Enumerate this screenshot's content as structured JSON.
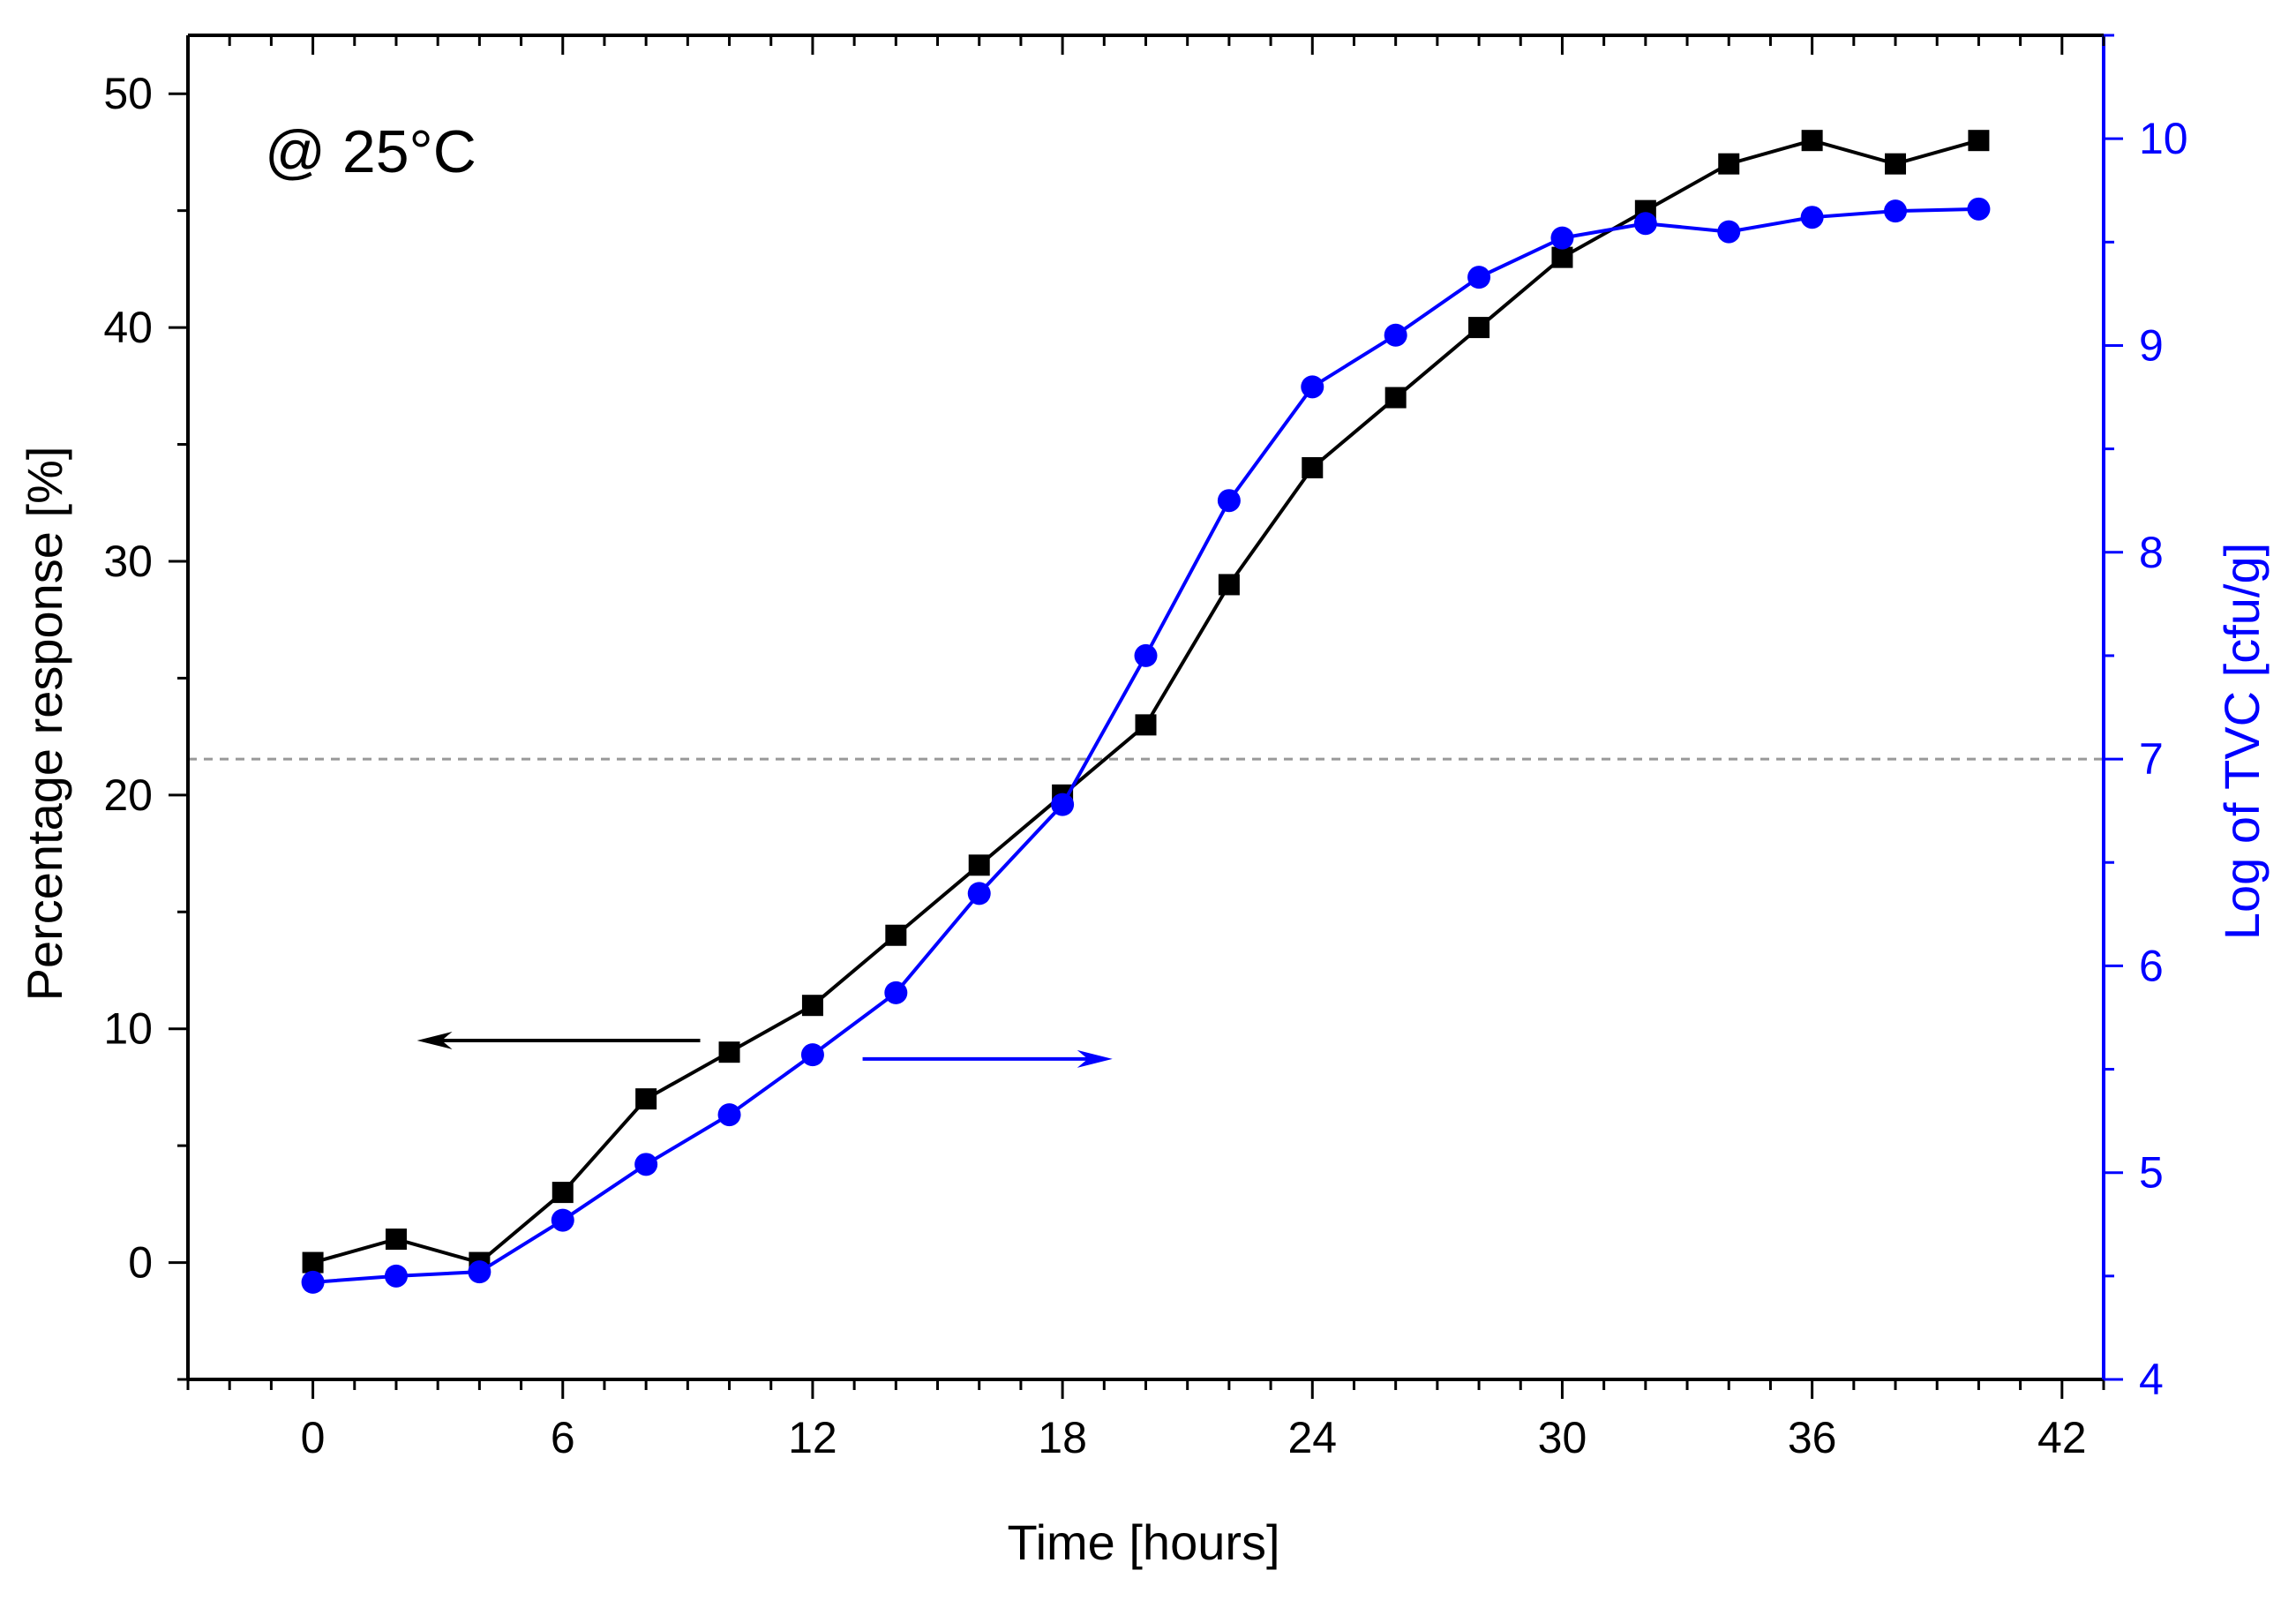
{
  "chart_data": {
    "type": "line",
    "title": "",
    "annotation": "@ 25°C",
    "xlabel": "Time [hours]",
    "ylabel": "Percentage response [%]",
    "y2label": "Log of TVC [cfu/g]",
    "xlim": [
      -3,
      43
    ],
    "ylim": [
      -5,
      52.5
    ],
    "y2lim": [
      4,
      10.5
    ],
    "xticks": [
      0,
      6,
      12,
      18,
      24,
      30,
      36,
      42
    ],
    "yticks": [
      0,
      10,
      20,
      30,
      40,
      50
    ],
    "y2ticks": [
      4,
      5,
      6,
      7,
      8,
      9,
      10
    ],
    "threshold_y2": 7,
    "grid": false,
    "colors": {
      "left_axis": "#000000",
      "right_axis": "#0000ff",
      "threshold": "#999999"
    },
    "series": [
      {
        "name": "Percentage response",
        "axis": "left",
        "marker": "square",
        "color": "#000000",
        "x": [
          0,
          2,
          4,
          6,
          8,
          10,
          12,
          14,
          16,
          18,
          20,
          22,
          24,
          26,
          28,
          30,
          32,
          34,
          36,
          38,
          40
        ],
        "values": [
          0,
          1,
          0,
          3,
          7,
          9,
          11,
          14,
          17,
          20,
          23,
          29,
          34,
          37,
          40,
          43,
          45,
          47,
          48,
          47,
          48
        ]
      },
      {
        "name": "Log of TVC",
        "axis": "right",
        "marker": "circle",
        "color": "#0000ff",
        "x": [
          0,
          2,
          4,
          6,
          8,
          10,
          12,
          14,
          16,
          18,
          20,
          22,
          24,
          26,
          28,
          30,
          32,
          34,
          36,
          38,
          40
        ],
        "values": [
          4.47,
          4.5,
          4.52,
          4.77,
          5.04,
          5.28,
          5.57,
          5.87,
          6.35,
          6.78,
          7.5,
          8.25,
          8.8,
          9.05,
          9.33,
          9.52,
          9.59,
          9.55,
          9.62,
          9.65,
          9.66
        ]
      }
    ],
    "arrows": [
      {
        "label": "points-to-left-axis",
        "axis": "left",
        "color": "#000000",
        "x_from": 9.3,
        "x_to": 2.5,
        "y": 9.5
      },
      {
        "label": "points-to-right-axis",
        "axis": "right",
        "color": "#0000ff",
        "x_from": 13.2,
        "x_to": 19.2,
        "y": 5.55
      }
    ]
  }
}
